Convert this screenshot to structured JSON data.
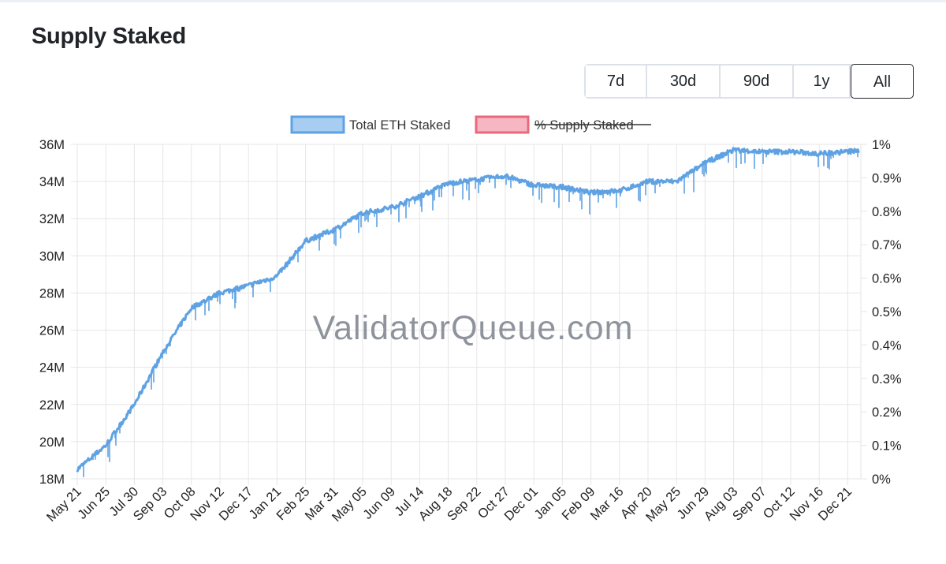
{
  "title": "Supply Staked",
  "range_buttons": [
    {
      "label": "7d",
      "active": false
    },
    {
      "label": "30d",
      "active": false
    },
    {
      "label": "90d",
      "active": false
    },
    {
      "label": "1y",
      "active": false
    },
    {
      "label": "All",
      "active": true
    }
  ],
  "watermark": "ValidatorQueue.com",
  "colors": {
    "series_line": "#5ea2e3",
    "series_fill": "#a8cdf2",
    "series2_line": "#e8687e",
    "series2_fill": "#f6b7c3",
    "grid": "#e6e6e6"
  },
  "chart_data": {
    "type": "line",
    "legend": [
      {
        "label": "Total ETH Staked",
        "hidden": false
      },
      {
        "label": "% Supply Staked",
        "hidden": true
      }
    ],
    "y_left": {
      "min": 18000000,
      "max": 36000000,
      "ticks": [
        "18M",
        "20M",
        "22M",
        "24M",
        "26M",
        "28M",
        "30M",
        "32M",
        "34M",
        "36M"
      ]
    },
    "y_right": {
      "min": 0,
      "max": 1,
      "ticks": [
        "0%",
        "0.1%",
        "0.2%",
        "0.3%",
        "0.4%",
        "0.5%",
        "0.6%",
        "0.7%",
        "0.8%",
        "0.9%",
        "1%"
      ]
    },
    "x_labels": [
      "May 21",
      "Jun 25",
      "Jul 30",
      "Sep 03",
      "Oct 08",
      "Nov 12",
      "Dec 17",
      "Jan 21",
      "Feb 25",
      "Mar 31",
      "May 05",
      "Jun 09",
      "Jul 14",
      "Aug 18",
      "Sep 22",
      "Oct 27",
      "Dec 01",
      "Jan 05",
      "Feb 09",
      "Mar 16",
      "Apr 20",
      "May 25",
      "Jun 29",
      "Aug 03",
      "Sep 07",
      "Oct 12",
      "Nov 16",
      "Dec 21"
    ],
    "grid": true,
    "series": [
      {
        "name": "Total ETH Staked",
        "x": [
          "May 21",
          "Jun 25",
          "Jul 30",
          "Sep 03",
          "Oct 08",
          "Nov 12",
          "Dec 17",
          "Jan 21",
          "Feb 25",
          "Mar 31",
          "May 05",
          "Jun 09",
          "Jul 14",
          "Aug 18",
          "Sep 22",
          "Oct 27",
          "Dec 01",
          "Jan 05",
          "Feb 09",
          "Mar 16",
          "Apr 20",
          "May 25",
          "Jun 29",
          "Aug 03",
          "Sep 07",
          "Oct 12",
          "Nov 16",
          "Dec 21",
          "Dec 31"
        ],
        "values": [
          18500000,
          19800000,
          22000000,
          24800000,
          27200000,
          28000000,
          28400000,
          28900000,
          30800000,
          31400000,
          32300000,
          32600000,
          33200000,
          33900000,
          34100000,
          34300000,
          33800000,
          33700000,
          33400000,
          33500000,
          34000000,
          34000000,
          35000000,
          35700000,
          35600000,
          35600000,
          35500000,
          35600000,
          35800000
        ]
      }
    ]
  }
}
